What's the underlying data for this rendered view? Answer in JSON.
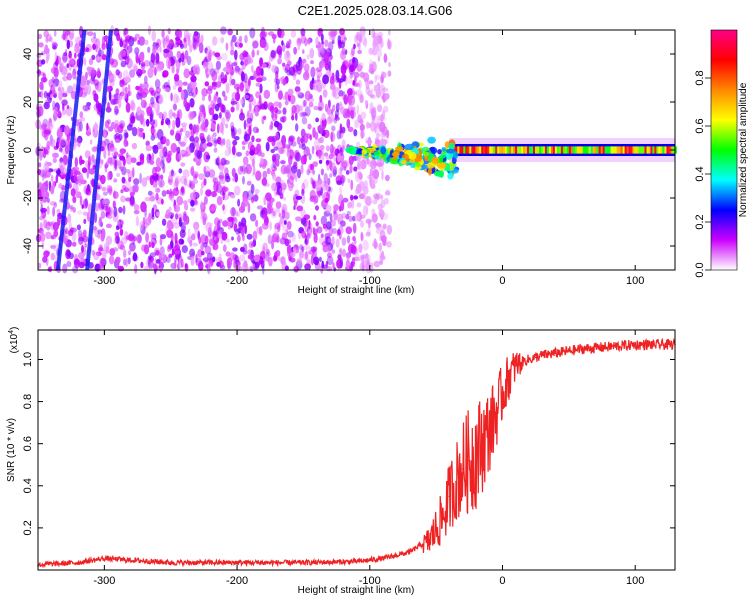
{
  "title": "C2E1.2025.028.03.14.G06",
  "chart_data": [
    {
      "type": "heatmap",
      "xlabel": "Height of straight line (km)",
      "ylabel": "Frequency (Hz)",
      "xlim": [
        -350,
        130
      ],
      "ylim": [
        -50,
        50
      ],
      "xticks": [
        -300,
        -200,
        -100,
        0,
        100
      ],
      "yticks": [
        -40,
        -20,
        0,
        20,
        40
      ],
      "colorbar": {
        "label": "Normalized spectral amplitude",
        "range": [
          0,
          1
        ],
        "ticks": [
          "0.0",
          "0.2",
          "0.4",
          "0.6",
          "0.8"
        ],
        "colors": [
          "#ffffff",
          "#cc00ff",
          "#0000ff",
          "#00ffff",
          "#00ff00",
          "#ffff00",
          "#ff8800",
          "#ff0000",
          "#ff0088"
        ]
      },
      "features": {
        "noise_x_range": [
          -350,
          -110
        ],
        "tone_x_range": [
          -115,
          130
        ],
        "tone_frequency_hz": 0,
        "oblique_tracks": [
          {
            "x_at_top": -315,
            "x_at_bottom": -335
          },
          {
            "x_at_top": -295,
            "x_at_bottom": -313
          }
        ]
      }
    },
    {
      "type": "line",
      "xlabel": "Height of straight line (km)",
      "ylabel": "SNR (10 * v/v)",
      "y_multiplier": "(x10",
      "y_multiplier_exp": "4",
      "y_multiplier_close": ")",
      "xlim": [
        -350,
        130
      ],
      "ylim": [
        0,
        1.14
      ],
      "xticks": [
        -300,
        -200,
        -100,
        0,
        100
      ],
      "yticks": [
        "0.2",
        "0.4",
        "0.6",
        "0.8",
        "1.0"
      ],
      "color": "#ee2222",
      "x": [
        -350,
        -320,
        -300,
        -250,
        -200,
        -150,
        -110,
        -90,
        -70,
        -55,
        -45,
        -40,
        -35,
        -30,
        -25,
        -20,
        -15,
        -10,
        -5,
        0,
        5,
        10,
        15,
        20,
        25,
        30,
        40,
        50,
        60,
        80,
        100,
        130
      ],
      "y": [
        0.02,
        0.03,
        0.05,
        0.03,
        0.03,
        0.03,
        0.035,
        0.05,
        0.08,
        0.14,
        0.25,
        0.35,
        0.42,
        0.48,
        0.52,
        0.55,
        0.6,
        0.66,
        0.74,
        0.84,
        0.92,
        0.97,
        0.99,
        1.0,
        1.01,
        1.02,
        1.03,
        1.04,
        1.05,
        1.06,
        1.07,
        1.07
      ]
    }
  ]
}
